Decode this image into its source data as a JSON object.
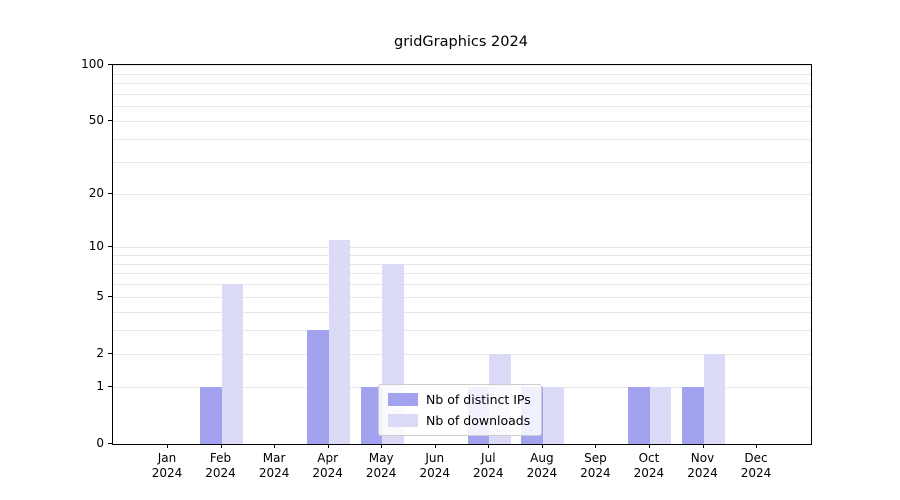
{
  "title": "gridGraphics 2024",
  "chart_data": {
    "type": "bar",
    "title": "gridGraphics 2024",
    "categories": [
      "Jan",
      "Feb",
      "Mar",
      "Apr",
      "May",
      "Jun",
      "Jul",
      "Aug",
      "Sep",
      "Oct",
      "Nov",
      "Dec"
    ],
    "year": "2024",
    "x_tick_labels": [
      "Jan 2024",
      "Feb 2024",
      "Mar 2024",
      "Apr 2024",
      "May 2024",
      "Jun 2024",
      "Jul 2024",
      "Aug 2024",
      "Sep 2024",
      "Oct 2024",
      "Nov 2024",
      "Dec 2024"
    ],
    "series": [
      {
        "name": "Nb of distinct IPs",
        "color": "#a2a2ef",
        "values": [
          0,
          1,
          0,
          3,
          1,
          0,
          1,
          1,
          0,
          1,
          1,
          0
        ]
      },
      {
        "name": "Nb of downloads",
        "color": "#dbdbf8",
        "values": [
          0,
          6,
          0,
          11,
          8,
          0,
          2,
          1,
          0,
          1,
          2,
          0
        ]
      }
    ],
    "yscale": "log1p",
    "ymax": 100,
    "yticks": [
      0,
      1,
      2,
      5,
      10,
      20,
      50,
      100
    ],
    "grid_values": [
      1,
      2,
      3,
      4,
      5,
      6,
      7,
      8,
      9,
      10,
      20,
      30,
      40,
      50,
      60,
      70,
      80,
      90,
      100
    ],
    "grid_color": "#e7e7e7",
    "legend_position": "lower center",
    "legend_entries": [
      "Nb of distinct IPs",
      "Nb of downloads"
    ]
  }
}
